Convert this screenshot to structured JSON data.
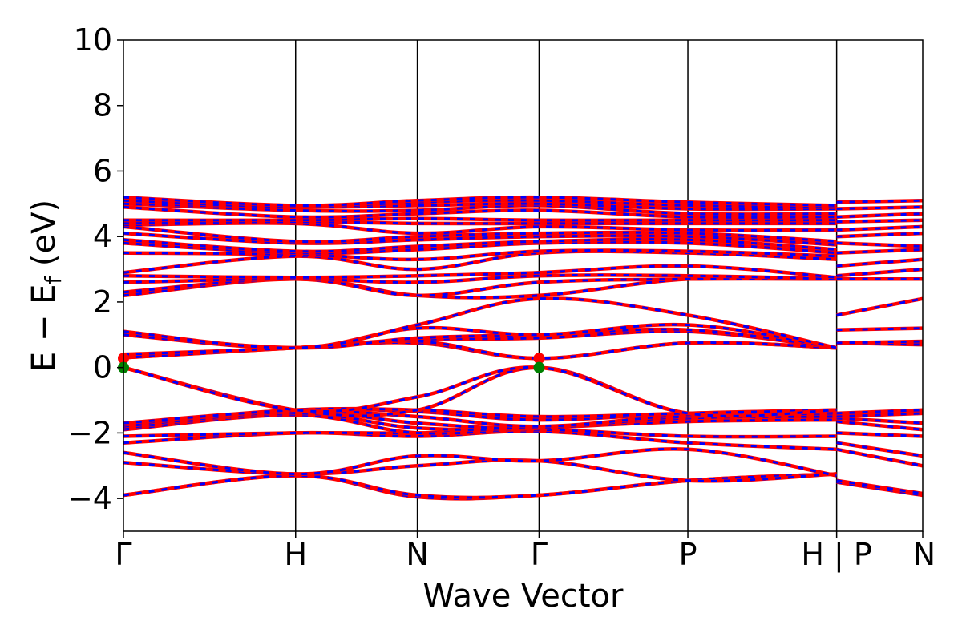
{
  "chart_data": {
    "type": "line",
    "title": "",
    "xlabel": "Wave Vector",
    "ylabel_parts": {
      "main": "E − E",
      "sub": "f",
      "unit": " (eV)"
    },
    "ylim": [
      -5,
      10
    ],
    "yticks": [
      -4,
      -2,
      0,
      2,
      4,
      6,
      8,
      10
    ],
    "ytick_labels": [
      "−4",
      "−2",
      "0",
      "2",
      "4",
      "6",
      "8",
      "10"
    ],
    "xlim": [
      0,
      6.5
    ],
    "kpoints": [
      {
        "x": 0.0,
        "label": "Γ"
      },
      {
        "x": 1.4,
        "label": "H"
      },
      {
        "x": 2.39,
        "label": "N"
      },
      {
        "x": 3.38,
        "label": "Γ"
      },
      {
        "x": 4.59,
        "label": "P"
      },
      {
        "x": 5.8,
        "label": "H | P"
      },
      {
        "x": 6.5,
        "label": "N"
      }
    ],
    "segment_break": 5.8,
    "colors": {
      "spin_up": "#ff0000",
      "spin_down": "#0000ff",
      "cbm_marker": "#ff0000",
      "vbm_marker": "#008000"
    },
    "markers": [
      {
        "name": "cbm",
        "color": "#ff0000",
        "points": [
          [
            0.0,
            0.28
          ],
          [
            3.38,
            0.28
          ]
        ]
      },
      {
        "name": "vbm",
        "color": "#008000",
        "points": [
          [
            0.0,
            0.0
          ],
          [
            3.38,
            0.0
          ]
        ]
      }
    ],
    "bands": [
      [
        -3.9,
        -3.3,
        -3.95,
        -3.9,
        -3.45,
        -3.25
      ],
      [
        -3.9,
        -3.3,
        -3.9,
        -3.9,
        -3.45,
        -3.25
      ],
      [
        -2.9,
        -3.25,
        -3.0,
        -2.85,
        -3.45,
        -3.25
      ],
      [
        -2.6,
        -3.25,
        -2.7,
        -2.85,
        -2.5,
        -3.3
      ],
      [
        -2.3,
        -2.0,
        -2.1,
        -1.95,
        -2.3,
        -2.5
      ],
      [
        -2.1,
        -2.0,
        -2.0,
        -1.9,
        -2.1,
        -2.1
      ],
      [
        -1.9,
        -1.45,
        -2.0,
        -1.85,
        -1.65,
        -1.6
      ],
      [
        -1.85,
        -1.4,
        -1.85,
        -1.85,
        -1.55,
        -1.5
      ],
      [
        -1.8,
        -1.35,
        -1.7,
        -1.85,
        -1.5,
        -1.4
      ],
      [
        -1.8,
        -1.35,
        -1.5,
        -1.8,
        -1.45,
        -1.35
      ],
      [
        -1.75,
        -1.3,
        -1.35,
        -1.6,
        -1.4,
        -1.3
      ],
      [
        -1.7,
        -1.3,
        -1.3,
        -1.5,
        -1.4,
        -1.3
      ],
      [
        0.0,
        -1.3,
        -1.3,
        0.0,
        -1.4,
        -1.3
      ],
      [
        0.0,
        -1.3,
        -0.9,
        0.0,
        -1.4,
        -1.3
      ],
      [
        0.3,
        0.6,
        0.75,
        0.28,
        0.75,
        0.6
      ],
      [
        0.3,
        0.6,
        0.8,
        0.28,
        0.75,
        0.6
      ],
      [
        0.4,
        0.6,
        0.85,
        0.9,
        1.1,
        0.6
      ],
      [
        1.0,
        0.6,
        0.9,
        1.0,
        1.15,
        0.6
      ],
      [
        1.0,
        0.6,
        1.2,
        1.0,
        1.3,
        0.6
      ],
      [
        1.1,
        0.6,
        1.3,
        2.1,
        1.6,
        0.6
      ],
      [
        2.2,
        2.7,
        2.2,
        2.2,
        2.7,
        2.7
      ],
      [
        2.3,
        2.7,
        2.2,
        2.6,
        2.7,
        2.7
      ],
      [
        2.6,
        2.7,
        2.6,
        2.8,
        2.8,
        2.7
      ],
      [
        2.8,
        2.75,
        2.8,
        2.9,
        3.1,
        2.75
      ],
      [
        2.9,
        3.4,
        3.0,
        3.5,
        3.5,
        3.3
      ],
      [
        3.5,
        3.45,
        3.3,
        3.55,
        3.55,
        3.4
      ],
      [
        3.8,
        3.5,
        3.6,
        3.8,
        3.8,
        3.5
      ],
      [
        3.9,
        3.55,
        3.7,
        3.85,
        3.9,
        3.6
      ],
      [
        4.1,
        3.8,
        3.9,
        4.0,
        4.0,
        3.75
      ],
      [
        4.3,
        3.85,
        4.0,
        4.1,
        4.1,
        3.85
      ],
      [
        4.35,
        4.4,
        4.1,
        4.3,
        4.2,
        4.2
      ],
      [
        4.4,
        4.45,
        4.4,
        4.4,
        4.4,
        4.4
      ],
      [
        4.5,
        4.5,
        4.55,
        4.5,
        4.5,
        4.5
      ],
      [
        4.9,
        4.6,
        4.7,
        4.8,
        4.6,
        4.6
      ],
      [
        5.0,
        4.8,
        4.8,
        4.95,
        4.7,
        4.7
      ],
      [
        5.0,
        4.9,
        4.95,
        5.0,
        4.85,
        4.85
      ],
      [
        5.1,
        4.9,
        5.05,
        5.1,
        4.95,
        4.9
      ],
      [
        5.2,
        4.95,
        5.1,
        5.2,
        5.05,
        4.95
      ]
    ],
    "bands_p_to_n": [
      [
        -3.5,
        -3.9
      ],
      [
        -3.45,
        -3.85
      ],
      [
        -2.5,
        -3.0
      ],
      [
        -2.3,
        -2.7
      ],
      [
        -2.0,
        -2.1
      ],
      [
        -1.65,
        -1.9
      ],
      [
        -1.55,
        -1.7
      ],
      [
        -1.5,
        -1.4
      ],
      [
        -1.4,
        -1.3
      ],
      [
        0.75,
        0.7
      ],
      [
        0.75,
        0.8
      ],
      [
        1.15,
        1.2
      ],
      [
        1.6,
        2.1
      ],
      [
        2.7,
        2.7
      ],
      [
        2.8,
        3.0
      ],
      [
        3.1,
        3.3
      ],
      [
        3.5,
        3.6
      ],
      [
        3.8,
        3.7
      ],
      [
        4.0,
        4.1
      ],
      [
        4.2,
        4.3
      ],
      [
        4.45,
        4.5
      ],
      [
        4.6,
        4.7
      ],
      [
        4.85,
        4.9
      ],
      [
        5.05,
        5.1
      ]
    ]
  }
}
